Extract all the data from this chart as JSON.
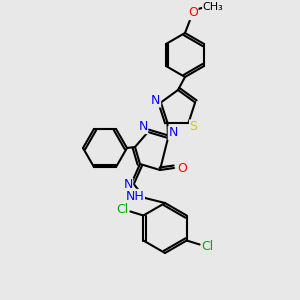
{
  "background_color": "#e8e8e8",
  "atom_colors": {
    "N": "#0000ff",
    "O": "#ff0000",
    "S": "#cccc00",
    "Cl": "#00aa00",
    "C": "#000000",
    "H": "#000000"
  },
  "bond_color": "#000000",
  "bond_width": 1.5,
  "font_size": 9,
  "methoxy_label": "O",
  "methyl_label": "CH₃"
}
